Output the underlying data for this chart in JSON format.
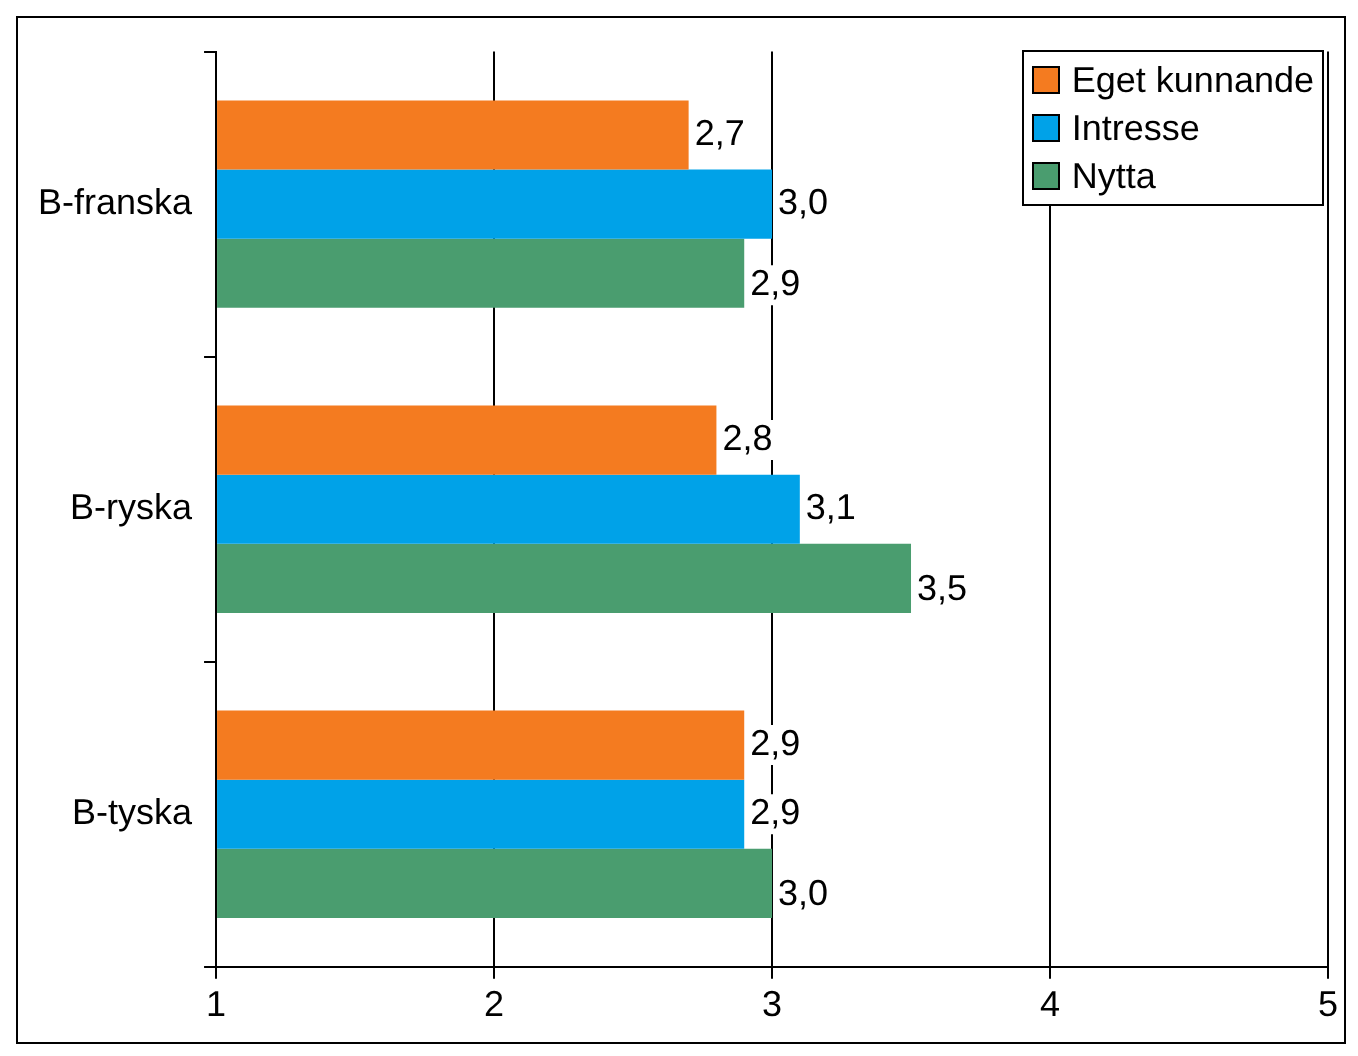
{
  "chart_data": {
    "type": "bar",
    "orientation": "horizontal",
    "categories": [
      "B-franska",
      "B-ryska",
      "B-tyska"
    ],
    "series": [
      {
        "name": "Eget kunnande",
        "color": "#f47b20",
        "values": [
          2.7,
          2.8,
          2.9
        ],
        "value_labels": [
          "2,7",
          "2,8",
          "2,9"
        ]
      },
      {
        "name": "Intresse",
        "color": "#00a2e8",
        "values": [
          3.0,
          3.1,
          2.9
        ],
        "value_labels": [
          "3,0",
          "3,1",
          "2,9"
        ]
      },
      {
        "name": "Nytta",
        "color": "#4a9d6f",
        "values": [
          2.9,
          3.5,
          3.0
        ],
        "value_labels": [
          "2,9",
          "3,5",
          "3,0"
        ]
      }
    ],
    "xlim": [
      1,
      5
    ],
    "xticks": [
      1,
      2,
      3,
      4,
      5
    ],
    "grid": "x",
    "legend": "top right"
  }
}
